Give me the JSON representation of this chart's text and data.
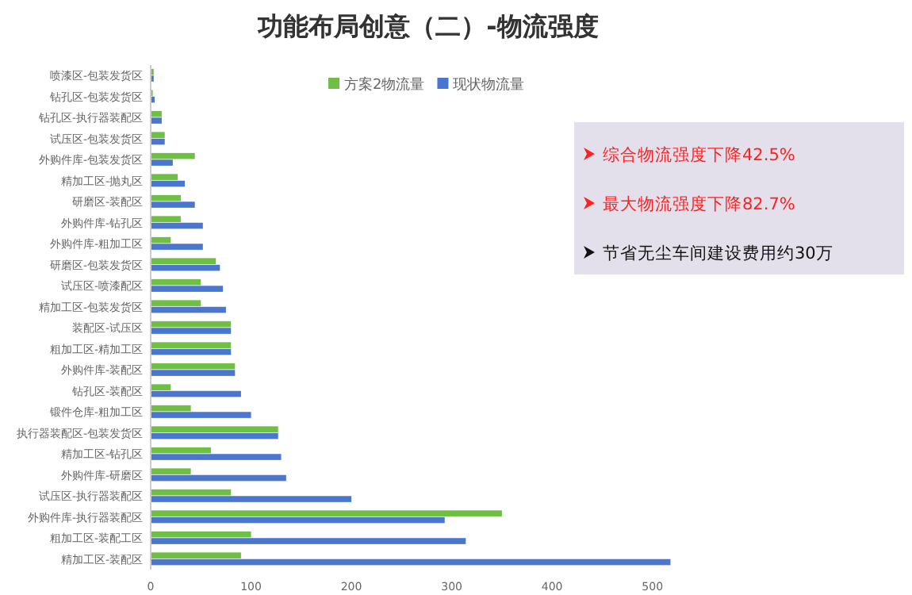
{
  "chart_data": {
    "type": "bar",
    "orientation": "horizontal",
    "title": "功能布局创意（二）-物流强度",
    "categories": [
      "喷漆区-包装发货区",
      "钻孔区-包装发货区",
      "钻孔区-执行器装配区",
      "试压区-包装发货区",
      "外购件库-包装发货区",
      "精加工区-抛丸区",
      "研磨区-装配区",
      "外购件库-钻孔区",
      "外购件库-粗加工区",
      "研磨区-包装发货区",
      "试压区-喷漆配区",
      "精加工区-包装发货区",
      "装配区-试压区",
      "粗加工区-精加工区",
      "外购件库-装配区",
      "钻孔区-装配区",
      "锻件仓库-粗加工区",
      "执行器装配区-包装发货区",
      "精加工区-钻孔区",
      "外购件库-研磨区",
      "试压区-执行器装配区",
      "外购件库-执行器装配区",
      "粗加工区-装配工区",
      "精加工区-装配区"
    ],
    "series": [
      {
        "name": "方案2物流量",
        "color": "#6fbf45",
        "values": [
          3,
          2,
          11,
          14,
          44,
          27,
          30,
          30,
          20,
          65,
          50,
          50,
          80,
          80,
          84,
          20,
          40,
          127,
          60,
          40,
          80,
          350,
          100,
          90
        ]
      },
      {
        "name": "现状物流量",
        "color": "#4a76d0",
        "values": [
          3,
          4,
          11,
          14,
          22,
          34,
          44,
          52,
          52,
          69,
          72,
          75,
          80,
          80,
          84,
          90,
          100,
          127,
          130,
          135,
          200,
          293,
          314,
          518
        ]
      }
    ],
    "xlim": [
      0,
      520
    ],
    "xticks": [
      0,
      100,
      200,
      300,
      400,
      500
    ],
    "grid": false,
    "legend": "top",
    "annotations": [
      "综合物流强度下降42.5%",
      "最大物流强度下降82.7%",
      "节省无尘车间建设费用约30万"
    ]
  }
}
